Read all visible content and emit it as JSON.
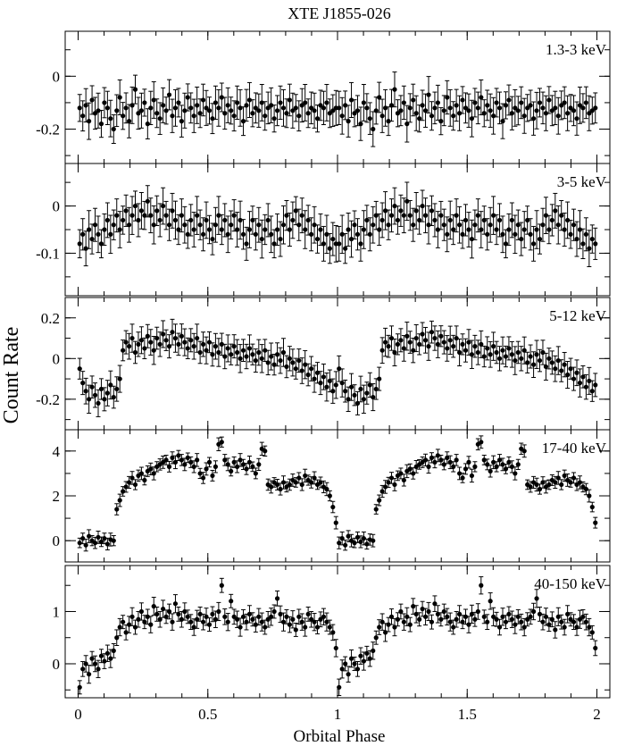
{
  "chart_data": {
    "type": "scatter",
    "title": "XTE J1855-026",
    "xlabel": "Orbital Phase",
    "ylabel": "Count Rate",
    "xlim": [
      -0.05,
      2.05
    ],
    "xticks": [
      0,
      0.5,
      1,
      1.5,
      2
    ],
    "xtick_labels": [
      "0",
      "0.5",
      "1",
      "1.5",
      "2"
    ],
    "points_per_cycle": 84,
    "cycles": 2,
    "panels": [
      {
        "label": "1.3-3 keV",
        "ylim": [
          -0.33,
          0.17
        ],
        "yticks": [
          -0.2,
          0
        ],
        "ytick_labels": [
          "-0.2",
          "0"
        ],
        "values": [
          -0.12,
          -0.15,
          -0.11,
          -0.17,
          -0.09,
          -0.14,
          -0.13,
          -0.18,
          -0.1,
          -0.12,
          -0.16,
          -0.2,
          -0.13,
          -0.08,
          -0.15,
          -0.12,
          -0.17,
          -0.11,
          -0.05,
          -0.14,
          -0.13,
          -0.1,
          -0.18,
          -0.12,
          -0.09,
          -0.14,
          -0.16,
          -0.11,
          -0.13,
          -0.07,
          -0.15,
          -0.12,
          -0.1,
          -0.17,
          -0.13,
          -0.08,
          -0.12,
          -0.15,
          -0.11,
          -0.14,
          -0.09,
          -0.12,
          -0.13,
          -0.16,
          -0.1,
          -0.12,
          -0.08,
          -0.14,
          -0.11,
          -0.13,
          -0.15,
          -0.1,
          -0.12,
          -0.17,
          -0.11,
          -0.09,
          -0.14,
          -0.12,
          -0.13,
          -0.1,
          -0.15,
          -0.12,
          -0.11,
          -0.16,
          -0.13,
          -0.1,
          -0.12,
          -0.14,
          -0.09,
          -0.13,
          -0.12,
          -0.15,
          -0.11,
          -0.1,
          -0.14,
          -0.12,
          -0.13,
          -0.16,
          -0.11,
          -0.12,
          -0.1,
          -0.14,
          -0.13,
          -0.12
        ],
        "errors": 0.06
      },
      {
        "label": "3-5 keV",
        "ylim": [
          -0.19,
          0.09
        ],
        "yticks": [
          -0.1,
          0
        ],
        "ytick_labels": [
          "-0.1",
          "0"
        ],
        "values": [
          -0.08,
          -0.06,
          -0.09,
          -0.05,
          -0.07,
          -0.04,
          -0.06,
          -0.08,
          -0.05,
          -0.03,
          -0.06,
          -0.04,
          -0.02,
          -0.05,
          -0.03,
          -0.01,
          -0.04,
          -0.02,
          0.0,
          -0.03,
          -0.01,
          -0.02,
          0.01,
          -0.02,
          -0.04,
          -0.01,
          -0.03,
          0.0,
          -0.02,
          -0.04,
          -0.01,
          -0.03,
          -0.05,
          -0.02,
          -0.04,
          -0.06,
          -0.03,
          -0.05,
          -0.02,
          -0.04,
          -0.06,
          -0.03,
          -0.05,
          -0.07,
          -0.04,
          -0.02,
          -0.05,
          -0.03,
          -0.06,
          -0.04,
          -0.02,
          -0.05,
          -0.03,
          -0.06,
          -0.08,
          -0.05,
          -0.03,
          -0.06,
          -0.04,
          -0.07,
          -0.05,
          -0.03,
          -0.06,
          -0.08,
          -0.05,
          -0.07,
          -0.04,
          -0.02,
          -0.05,
          -0.03,
          -0.01,
          -0.04,
          -0.02,
          -0.05,
          -0.03,
          -0.06,
          -0.04,
          -0.07,
          -0.05,
          -0.08,
          -0.06,
          -0.09,
          -0.07,
          -0.08
        ],
        "errors": 0.035
      },
      {
        "label": "5-12 keV",
        "ylim": [
          -0.35,
          0.3
        ],
        "yticks": [
          -0.2,
          0,
          0.2
        ],
        "ytick_labels": [
          "-0.2",
          "0",
          "0.2"
        ],
        "values": [
          -0.05,
          -0.12,
          -0.16,
          -0.2,
          -0.14,
          -0.18,
          -0.22,
          -0.15,
          -0.2,
          -0.17,
          -0.13,
          -0.19,
          -0.15,
          -0.1,
          0.04,
          0.08,
          0.06,
          0.1,
          0.03,
          0.07,
          0.09,
          0.05,
          0.11,
          0.08,
          0.04,
          0.1,
          0.07,
          0.12,
          0.09,
          0.06,
          0.13,
          0.1,
          0.07,
          0.11,
          0.08,
          0.05,
          0.09,
          0.06,
          0.1,
          0.03,
          0.07,
          0.04,
          0.08,
          0.02,
          0.06,
          0.03,
          0.07,
          0.01,
          0.05,
          0.02,
          0.06,
          0.03,
          0.0,
          0.04,
          0.01,
          0.05,
          0.02,
          -0.01,
          0.03,
          0.0,
          0.04,
          -0.02,
          0.01,
          -0.03,
          0.02,
          -0.01,
          0.03,
          -0.04,
          0.0,
          -0.02,
          -0.05,
          -0.01,
          -0.06,
          -0.03,
          -0.08,
          -0.05,
          -0.1,
          -0.07,
          -0.12,
          -0.09,
          -0.14,
          -0.11,
          -0.16,
          -0.13
        ],
        "errors": 0.06
      },
      {
        "label": "17-40 keV",
        "ylim": [
          -0.95,
          4.95
        ],
        "yticks": [
          0,
          2,
          4
        ],
        "ytick_labels": [
          "0",
          "2",
          "4"
        ],
        "values": [
          -0.1,
          0.1,
          -0.2,
          0.2,
          0.0,
          -0.1,
          0.15,
          -0.05,
          0.1,
          -0.15,
          0.05,
          0.0,
          1.4,
          1.8,
          2.2,
          2.4,
          2.6,
          2.8,
          2.5,
          2.9,
          3.0,
          2.7,
          3.1,
          3.2,
          3.0,
          3.3,
          3.4,
          3.5,
          3.6,
          3.3,
          3.7,
          3.5,
          3.8,
          3.6,
          3.4,
          3.7,
          3.5,
          3.3,
          3.6,
          3.0,
          2.8,
          3.2,
          3.5,
          2.9,
          3.3,
          4.3,
          4.4,
          3.6,
          3.4,
          3.1,
          3.5,
          3.3,
          3.6,
          3.4,
          3.2,
          3.5,
          3.3,
          3.0,
          3.4,
          4.1,
          4.0,
          2.5,
          2.4,
          2.6,
          2.5,
          2.3,
          2.6,
          2.4,
          2.5,
          2.7,
          2.6,
          2.8,
          2.5,
          2.9,
          2.7,
          2.6,
          2.8,
          2.5,
          2.6,
          2.4,
          2.3,
          2.0,
          1.5,
          0.8
        ],
        "errors": 0.25
      },
      {
        "label": "40-150 keV",
        "ylim": [
          -0.65,
          1.88
        ],
        "yticks": [
          0,
          1
        ],
        "ytick_labels": [
          "0",
          "1"
        ],
        "values": [
          -0.45,
          -0.1,
          0.0,
          -0.2,
          0.1,
          0.0,
          -0.1,
          0.15,
          0.05,
          0.2,
          0.1,
          0.25,
          0.5,
          0.7,
          0.8,
          0.6,
          0.75,
          0.9,
          0.7,
          0.85,
          1.0,
          0.8,
          0.9,
          0.75,
          1.1,
          0.95,
          0.85,
          1.05,
          0.9,
          1.0,
          0.8,
          1.15,
          0.95,
          0.85,
          1.0,
          0.9,
          0.8,
          0.7,
          0.85,
          0.95,
          0.8,
          0.9,
          0.75,
          0.95,
          0.85,
          1.0,
          1.5,
          0.9,
          0.8,
          1.2,
          0.9,
          0.85,
          0.7,
          0.9,
          0.8,
          0.95,
          0.85,
          0.75,
          0.9,
          0.8,
          0.7,
          0.85,
          0.9,
          1.0,
          1.25,
          0.95,
          0.8,
          0.9,
          0.75,
          0.85,
          0.65,
          0.9,
          0.8,
          0.7,
          0.95,
          0.85,
          0.8,
          0.7,
          0.85,
          0.9,
          0.8,
          0.7,
          0.6,
          0.3
        ],
        "errors": 0.15
      }
    ]
  }
}
